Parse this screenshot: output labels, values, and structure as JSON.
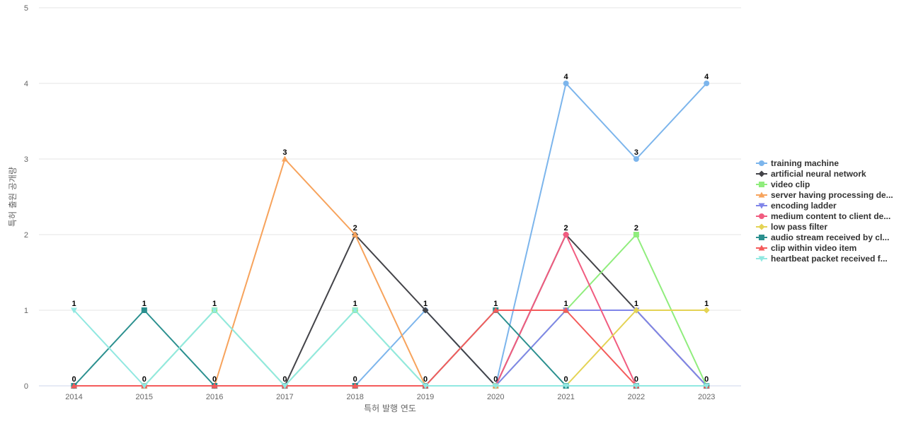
{
  "chart_data": {
    "type": "line",
    "title": "",
    "xlabel": "특허 발행 연도",
    "ylabel": "특허 출원 공개량",
    "x": [
      "2014",
      "2015",
      "2016",
      "2017",
      "2018",
      "2019",
      "2020",
      "2021",
      "2022",
      "2023"
    ],
    "ylim": [
      0,
      5
    ],
    "yticks": [
      0,
      1,
      2,
      3,
      4,
      5
    ],
    "grid": true,
    "legend_position": "right",
    "series": [
      {
        "name": "training machine",
        "color": "#7cb5ec",
        "marker": "circle",
        "values": [
          0,
          0,
          0,
          0,
          0,
          1,
          0,
          4,
          3,
          4
        ]
      },
      {
        "name": "artificial neural network",
        "color": "#434348",
        "marker": "diamond",
        "values": [
          0,
          0,
          0,
          0,
          2,
          1,
          0,
          2,
          1,
          0
        ]
      },
      {
        "name": "video clip",
        "color": "#90ed7d",
        "marker": "square",
        "values": [
          0,
          0,
          1,
          0,
          1,
          0,
          0,
          1,
          2,
          0
        ]
      },
      {
        "name": "server having processing de...",
        "color": "#f7a35c",
        "marker": "triangle",
        "values": [
          0,
          0,
          0,
          3,
          2,
          0,
          0,
          0,
          0,
          0
        ]
      },
      {
        "name": "encoding ladder",
        "color": "#8085e9",
        "marker": "triangle-down",
        "values": [
          0,
          0,
          0,
          0,
          0,
          0,
          0,
          1,
          1,
          0
        ]
      },
      {
        "name": "medium content to client de...",
        "color": "#f15c80",
        "marker": "circle",
        "values": [
          0,
          0,
          0,
          0,
          0,
          0,
          0,
          2,
          0,
          0
        ]
      },
      {
        "name": "low pass filter",
        "color": "#e4d354",
        "marker": "diamond",
        "values": [
          0,
          0,
          0,
          0,
          0,
          0,
          0,
          0,
          1,
          1
        ]
      },
      {
        "name": "audio stream received by cl...",
        "color": "#2b908f",
        "marker": "square",
        "values": [
          0,
          1,
          0,
          0,
          0,
          0,
          1,
          0,
          0,
          0
        ]
      },
      {
        "name": "clip within video item",
        "color": "#f45b5b",
        "marker": "triangle",
        "values": [
          0,
          0,
          0,
          0,
          0,
          0,
          1,
          1,
          0,
          0
        ]
      },
      {
        "name": "heartbeat packet received f...",
        "color": "#91e8e1",
        "marker": "triangle-down",
        "values": [
          1,
          0,
          1,
          0,
          1,
          0,
          0,
          0,
          0,
          0
        ]
      }
    ],
    "point_labels": [
      {
        "x": "2014",
        "labels": [
          "1",
          "0"
        ]
      },
      {
        "x": "2015",
        "labels": [
          "1",
          "0"
        ]
      },
      {
        "x": "2016",
        "labels": [
          "1",
          "0"
        ]
      },
      {
        "x": "2017",
        "labels": [
          "3",
          "0"
        ]
      },
      {
        "x": "2018",
        "labels": [
          "2",
          "1",
          "0"
        ]
      },
      {
        "x": "2019",
        "labels": [
          "1",
          "0"
        ]
      },
      {
        "x": "2020",
        "labels": [
          "1",
          "0"
        ]
      },
      {
        "x": "2021",
        "labels": [
          "4",
          "2",
          "1",
          "0"
        ]
      },
      {
        "x": "2022",
        "labels": [
          "3",
          "2",
          "1",
          "0"
        ]
      },
      {
        "x": "2023",
        "labels": [
          "4",
          "1",
          "0"
        ]
      }
    ]
  }
}
